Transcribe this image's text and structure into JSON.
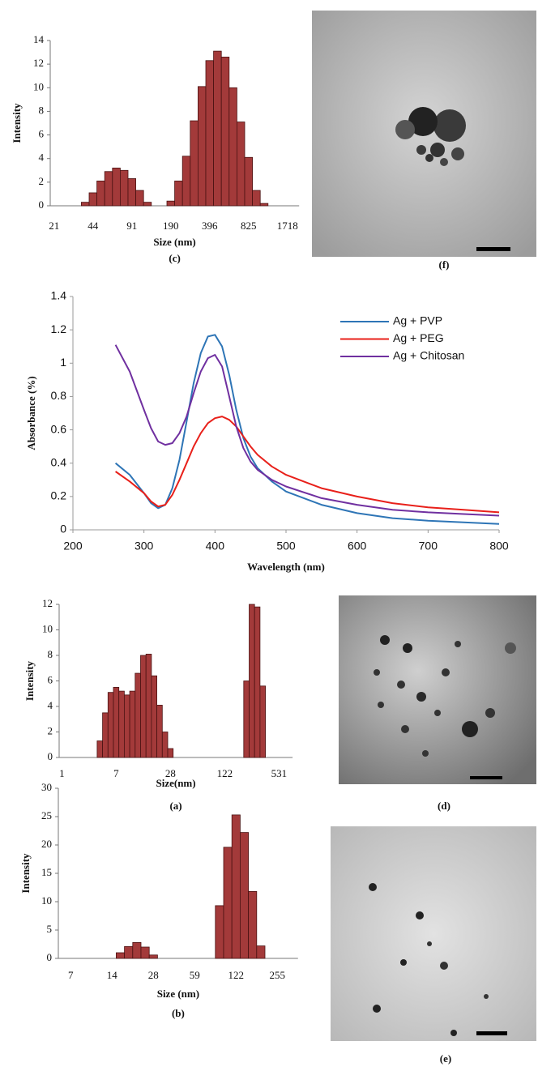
{
  "chart_data": [
    {
      "type": "bar",
      "caption": "(c)",
      "x_label": "Size (nm)",
      "y_label": "Intensity",
      "color": "#a33a3a",
      "categories": [
        "21",
        null,
        null,
        null,
        null,
        "44",
        null,
        null,
        null,
        null,
        "91",
        null,
        null,
        null,
        null,
        "190",
        null,
        null,
        null,
        null,
        "396",
        null,
        null,
        null,
        null,
        "825",
        null,
        null,
        null,
        null,
        "1718",
        null
      ],
      "values": [
        0,
        0,
        0,
        0,
        0.3,
        1.1,
        2.1,
        2.9,
        3.2,
        3.0,
        2.3,
        1.3,
        0.3,
        0,
        0,
        0.4,
        2.1,
        4.2,
        7.2,
        10.1,
        12.3,
        13.1,
        12.6,
        10.0,
        7.1,
        4.1,
        1.3,
        0.2,
        0,
        0,
        0,
        0
      ],
      "ylim": [
        0,
        14
      ],
      "yticks": [
        0,
        2,
        4,
        6,
        8,
        10,
        12,
        14
      ]
    },
    {
      "type": "line",
      "x_label": "Wavelength (nm)",
      "y_label": "Absorbance (%)",
      "legend": "upper right",
      "x": [
        260,
        280,
        300,
        310,
        320,
        330,
        340,
        350,
        360,
        370,
        380,
        390,
        400,
        410,
        420,
        430,
        440,
        450,
        460,
        480,
        500,
        550,
        600,
        650,
        700,
        750,
        800
      ],
      "series": [
        {
          "name": "Ag + PVP",
          "color": "#2e75b6",
          "values": [
            0.4,
            0.33,
            0.22,
            0.16,
            0.13,
            0.15,
            0.25,
            0.42,
            0.65,
            0.88,
            1.06,
            1.16,
            1.17,
            1.1,
            0.93,
            0.72,
            0.55,
            0.44,
            0.37,
            0.29,
            0.23,
            0.15,
            0.1,
            0.07,
            0.055,
            0.045,
            0.035
          ]
        },
        {
          "name": "Ag + PEG",
          "color": "#e8201a",
          "values": [
            0.35,
            0.29,
            0.22,
            0.17,
            0.14,
            0.15,
            0.21,
            0.3,
            0.4,
            0.5,
            0.58,
            0.64,
            0.67,
            0.68,
            0.66,
            0.62,
            0.56,
            0.5,
            0.45,
            0.38,
            0.33,
            0.25,
            0.2,
            0.16,
            0.135,
            0.12,
            0.105
          ]
        },
        {
          "name": "Ag + Chitosan",
          "color": "#7030a0",
          "values": [
            1.11,
            0.95,
            0.72,
            0.61,
            0.53,
            0.51,
            0.52,
            0.58,
            0.68,
            0.82,
            0.95,
            1.03,
            1.05,
            0.98,
            0.8,
            0.62,
            0.49,
            0.41,
            0.36,
            0.3,
            0.26,
            0.19,
            0.15,
            0.12,
            0.105,
            0.095,
            0.085
          ]
        }
      ],
      "xlim": [
        200,
        800
      ],
      "xticks": [
        200,
        300,
        400,
        500,
        600,
        700,
        800
      ],
      "ylim": [
        0,
        1.4
      ],
      "yticks": [
        0,
        0.2,
        0.4,
        0.6,
        0.8,
        1,
        1.2,
        1.4
      ]
    },
    {
      "type": "bar",
      "caption": "(a)",
      "x_label": "Size(nm)",
      "y_label": "Intensity",
      "color": "#a33a3a",
      "categories": [
        "1",
        null,
        null,
        null,
        null,
        null,
        null,
        null,
        null,
        null,
        "7",
        null,
        null,
        null,
        null,
        null,
        null,
        null,
        null,
        null,
        "28",
        null,
        null,
        null,
        null,
        null,
        null,
        null,
        null,
        null,
        "122",
        null,
        null,
        null,
        null,
        null,
        null,
        null,
        null,
        null,
        "531",
        null,
        null
      ],
      "values": [
        0,
        0,
        0,
        0,
        0,
        0,
        0,
        1.3,
        3.5,
        5.1,
        5.5,
        5.2,
        4.9,
        5.2,
        6.6,
        8.0,
        8.1,
        6.4,
        4.1,
        2.0,
        0.7,
        0,
        0,
        0,
        0,
        0,
        0,
        0,
        0,
        0,
        0,
        0,
        0,
        0,
        6.0,
        12.0,
        11.8,
        5.6,
        0,
        0,
        0,
        0,
        0
      ],
      "ylim": [
        0,
        12
      ],
      "yticks": [
        0,
        2,
        4,
        6,
        8,
        10,
        12
      ]
    },
    {
      "type": "bar",
      "caption": "(b)",
      "x_label": "Size (nm)",
      "y_label": "Intensity",
      "color": "#a33a3a",
      "categories": [
        null,
        "7",
        null,
        null,
        null,
        null,
        "14",
        null,
        null,
        null,
        null,
        "28",
        null,
        null,
        null,
        null,
        "59",
        null,
        null,
        null,
        null,
        "122",
        null,
        null,
        null,
        null,
        "255",
        null,
        null
      ],
      "values": [
        0,
        0,
        0,
        0,
        0,
        0,
        0,
        1.0,
        2.1,
        2.8,
        2.0,
        0.6,
        0,
        0,
        0,
        0,
        0,
        0,
        0,
        9.3,
        19.6,
        25.3,
        22.2,
        11.8,
        2.2,
        0,
        0,
        0,
        0
      ],
      "ylim": [
        0,
        30
      ],
      "yticks": [
        0,
        5,
        10,
        15,
        20,
        25,
        30
      ]
    }
  ],
  "images": [
    {
      "caption": "(f)"
    },
    {
      "caption": "(d)"
    },
    {
      "caption": "(e)"
    }
  ]
}
